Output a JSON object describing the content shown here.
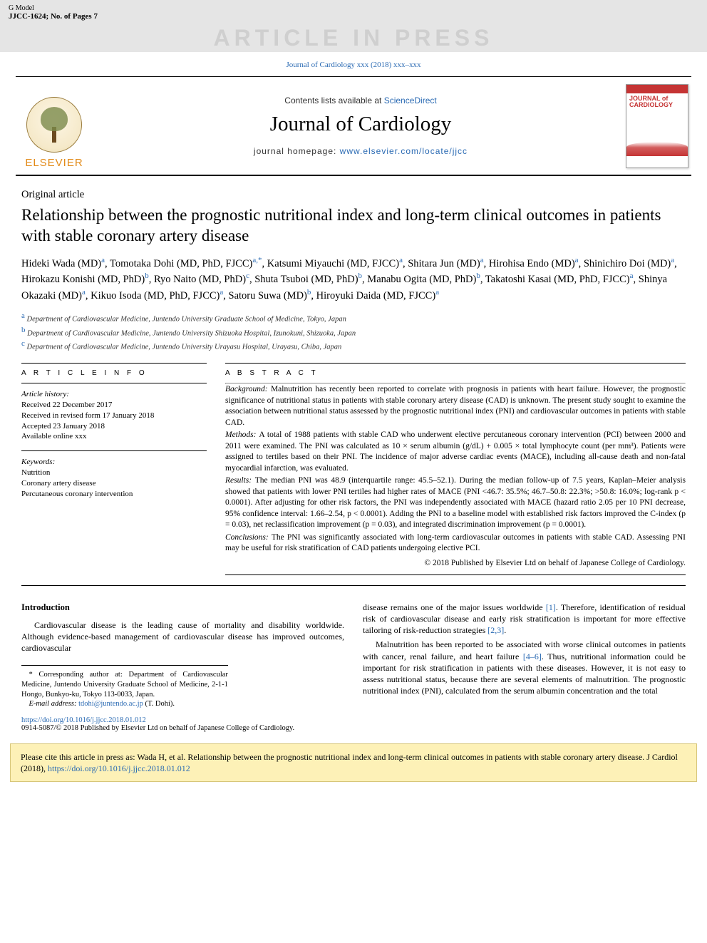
{
  "topbar": {
    "g_model": "G Model",
    "pages_info": "JJCC-1624; No. of Pages 7"
  },
  "press_banner": "ARTICLE IN PRESS",
  "journal_ref": "Journal of Cardiology xxx (2018) xxx–xxx",
  "header": {
    "contents_list_prefix": "Contents lists available at ",
    "contents_list_provider": "ScienceDirect",
    "journal_name": "Journal of Cardiology",
    "homepage_label": "journal homepage: ",
    "homepage_url": "www.elsevier.com/locate/jjcc",
    "elsevier_label": "ELSEVIER",
    "cover_title": "JOURNAL of CARDIOLOGY"
  },
  "article": {
    "type": "Original article",
    "title": "Relationship between the prognostic nutritional index and long-term clinical outcomes in patients with stable coronary artery disease",
    "authors_html": "Hideki Wada (MD)<sup class=\"aff-sup\">a</sup>, Tomotaka Dohi (MD, PhD, FJCC)<sup class=\"aff-sup\">a,*</sup>, Katsumi Miyauchi (MD, FJCC)<sup class=\"aff-sup\">a</sup>, Shitara Jun (MD)<sup class=\"aff-sup\">a</sup>, Hirohisa Endo (MD)<sup class=\"aff-sup\">a</sup>, Shinichiro Doi (MD)<sup class=\"aff-sup\">a</sup>, Hirokazu Konishi (MD, PhD)<sup class=\"aff-sup\">b</sup>, Ryo Naito (MD, PhD)<sup class=\"aff-sup\">c</sup>, Shuta Tsuboi (MD, PhD)<sup class=\"aff-sup\">b</sup>, Manabu Ogita (MD, PhD)<sup class=\"aff-sup\">b</sup>, Takatoshi Kasai (MD, PhD, FJCC)<sup class=\"aff-sup\">a</sup>, Shinya Okazaki (MD)<sup class=\"aff-sup\">a</sup>, Kikuo Isoda (MD, PhD, FJCC)<sup class=\"aff-sup\">a</sup>, Satoru Suwa (MD)<sup class=\"aff-sup\">b</sup>, Hiroyuki Daida (MD, FJCC)<sup class=\"aff-sup\">a</sup>",
    "affiliations": [
      {
        "sup": "a",
        "text": "Department of Cardiovascular Medicine, Juntendo University Graduate School of Medicine, Tokyo, Japan"
      },
      {
        "sup": "b",
        "text": "Department of Cardiovascular Medicine, Juntendo University Shizuoka Hospital, Izunokuni, Shizuoka, Japan"
      },
      {
        "sup": "c",
        "text": "Department of Cardiovascular Medicine, Juntendo University Urayasu Hospital, Urayasu, Chiba, Japan"
      }
    ]
  },
  "info": {
    "head": "A R T I C L E  I N F O",
    "history_label": "Article history:",
    "history_lines": [
      "Received 22 December 2017",
      "Received in revised form 17 January 2018",
      "Accepted 23 January 2018",
      "Available online xxx"
    ],
    "keywords_label": "Keywords:",
    "keywords": [
      "Nutrition",
      "Coronary artery disease",
      "Percutaneous coronary intervention"
    ]
  },
  "abstract": {
    "head": "A B S T R A C T",
    "sections": [
      {
        "label": "Background:",
        "text": "Malnutrition has recently been reported to correlate with prognosis in patients with heart failure. However, the prognostic significance of nutritional status in patients with stable coronary artery disease (CAD) is unknown. The present study sought to examine the association between nutritional status assessed by the prognostic nutritional index (PNI) and cardiovascular outcomes in patients with stable CAD."
      },
      {
        "label": "Methods:",
        "text": "A total of 1988 patients with stable CAD who underwent elective percutaneous coronary intervention (PCI) between 2000 and 2011 were examined. The PNI was calculated as 10 × serum albumin (g/dL) + 0.005 × total lymphocyte count (per mm³). Patients were assigned to tertiles based on their PNI. The incidence of major adverse cardiac events (MACE), including all-cause death and non-fatal myocardial infarction, was evaluated."
      },
      {
        "label": "Results:",
        "text": "The median PNI was 48.9 (interquartile range: 45.5–52.1). During the median follow-up of 7.5 years, Kaplan–Meier analysis showed that patients with lower PNI tertiles had higher rates of MACE (PNI <46.7: 35.5%; 46.7–50.8: 22.3%; >50.8: 16.0%; log-rank p < 0.0001). After adjusting for other risk factors, the PNI was independently associated with MACE (hazard ratio 2.05 per 10 PNI decrease, 95% confidence interval: 1.66–2.54, p < 0.0001). Adding the PNI to a baseline model with established risk factors improved the C-index (p = 0.03), net reclassification improvement (p = 0.03), and integrated discrimination improvement (p = 0.0001)."
      },
      {
        "label": "Conclusions:",
        "text": "The PNI was significantly associated with long-term cardiovascular outcomes in patients with stable CAD. Assessing PNI may be useful for risk stratification of CAD patients undergoing elective PCI."
      }
    ],
    "copyright": "© 2018 Published by Elsevier Ltd on behalf of Japanese College of Cardiology."
  },
  "body": {
    "intro_head": "Introduction",
    "left_col_p1": "Cardiovascular disease is the leading cause of mortality and disability worldwide. Although evidence-based management of cardiovascular disease has improved outcomes, cardiovascular",
    "right_col_p1_pre": "disease remains one of the major issues worldwide ",
    "right_col_p1_ref1": "[1]",
    "right_col_p1_mid": ". Therefore, identification of residual risk of cardiovascular disease and early risk stratification is important for more effective tailoring of risk-reduction strategies ",
    "right_col_p1_ref2": "[2,3]",
    "right_col_p1_post": ".",
    "right_col_p2_pre": "Malnutrition has been reported to be associated with worse clinical outcomes in patients with cancer, renal failure, and heart failure ",
    "right_col_p2_ref": "[4–6]",
    "right_col_p2_post": ". Thus, nutritional information could be important for risk stratification in patients with these diseases. However, it is not easy to assess nutritional status, because there are several elements of malnutrition. The prognostic nutritional index (PNI), calculated from the serum albumin concentration and the total"
  },
  "footnote": {
    "corresponding": "* Corresponding author at: Department of Cardiovascular Medicine, Juntendo University Graduate School of Medicine, 2-1-1 Hongo, Bunkyo-ku, Tokyo 113-0033, Japan.",
    "email_label": "E-mail address: ",
    "email": "tdohi@juntendo.ac.jp",
    "email_name": " (T. Dohi)."
  },
  "doi_block": {
    "doi": "https://doi.org/10.1016/j.jjcc.2018.01.012",
    "issn_line": "0914-5087/© 2018 Published by Elsevier Ltd on behalf of Japanese College of Cardiology."
  },
  "cite_box": {
    "text_pre": "Please cite this article in press as: Wada H, et al. Relationship between the prognostic nutritional index and long-term clinical outcomes in patients with stable coronary artery disease. J Cardiol (2018), ",
    "doi": "https://doi.org/10.1016/j.jjcc.2018.01.012"
  },
  "colors": {
    "link": "#2a6ab3",
    "banner_bg": "#e5e5e5",
    "banner_text": "#cfcfcf",
    "elsevier": "#e28b1a",
    "citebox_bg": "#fdf1b7",
    "citebox_border": "#d7c67a"
  }
}
